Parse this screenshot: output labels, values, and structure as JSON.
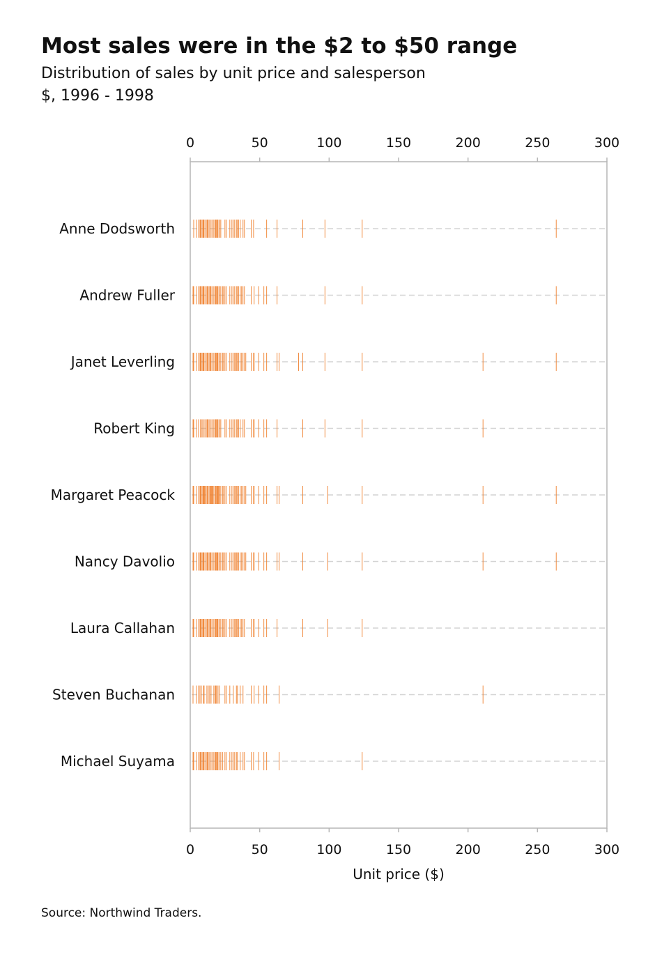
{
  "header": {
    "title": "Most sales were in the $2 to $50 range",
    "subtitle": "Distribution of sales by unit price and salesperson",
    "unit": "$, 1996 - 1998"
  },
  "footer": {
    "source": "Source: Northwind Traders."
  },
  "colors": {
    "mark": "#f07f2c",
    "frame": "#b5b5b5",
    "guide": "#d4d4d4"
  },
  "chart_data": {
    "type": "strip",
    "xlabel": "Unit price ($)",
    "xlim": [
      0,
      300
    ],
    "xticks": [
      0,
      50,
      100,
      150,
      200,
      250,
      300
    ],
    "x_axis_both_sides": true,
    "grid": false,
    "categories": [
      "Anne Dodsworth",
      "Andrew Fuller",
      "Janet Leverling",
      "Robert King",
      "Margaret Peacock",
      "Nancy Davolio",
      "Laura Callahan",
      "Steven Buchanan",
      "Michael Suyama"
    ],
    "series": [
      {
        "name": "Anne Dodsworth",
        "values": [
          2.5,
          4.5,
          6,
          7,
          7.45,
          8,
          9,
          9.2,
          9.5,
          10,
          11,
          12,
          12.5,
          13,
          14,
          15,
          16,
          17,
          18,
          18.4,
          19,
          19.5,
          20,
          21,
          21.05,
          22,
          25,
          26,
          28.5,
          30,
          31,
          32,
          33.25,
          34,
          34.8,
          36,
          38,
          39,
          43.9,
          45.6,
          55,
          62.5,
          81,
          97,
          123.79,
          263.5
        ]
      },
      {
        "name": "Andrew Fuller",
        "values": [
          2,
          2.5,
          4.5,
          6,
          7,
          7.45,
          8,
          9,
          9.2,
          9.5,
          10,
          11,
          12,
          12.5,
          13,
          14,
          14.5,
          15,
          16,
          17,
          18,
          18.4,
          19,
          19.5,
          20,
          21,
          21.05,
          22,
          23.25,
          24,
          25,
          26,
          28.5,
          30,
          31,
          32,
          33.25,
          34,
          34.8,
          36,
          37,
          38,
          39,
          43.9,
          46,
          49.3,
          53,
          55,
          62.5,
          97,
          123.79,
          263.5
        ]
      },
      {
        "name": "Janet Leverling",
        "values": [
          2,
          2.5,
          4.5,
          6,
          7,
          7.45,
          7.75,
          8,
          9,
          9.2,
          9.5,
          10,
          11,
          12,
          12.5,
          13,
          14,
          14.5,
          15,
          16,
          17,
          18,
          18.4,
          19,
          19.45,
          19.5,
          20,
          21,
          21.05,
          22,
          23.25,
          24,
          25,
          26,
          28.5,
          30,
          31,
          32,
          32.8,
          33.25,
          34,
          34.8,
          36,
          37,
          38,
          39,
          40,
          43.9,
          45.6,
          46,
          49.3,
          53,
          55,
          62.5,
          64,
          78,
          81,
          97,
          123.79,
          210.8,
          263.5
        ]
      },
      {
        "name": "Robert King",
        "values": [
          2,
          2.5,
          4.5,
          6,
          7.45,
          8,
          9,
          10,
          11,
          12,
          12.5,
          13,
          14,
          15,
          16,
          17,
          18,
          18.4,
          19,
          19.5,
          20,
          21,
          21.05,
          22,
          25,
          26,
          28.5,
          30,
          31,
          32,
          33.25,
          34,
          34.8,
          36,
          38,
          39,
          43.9,
          45.6,
          46,
          49.3,
          53,
          55,
          62.5,
          81,
          97,
          123.79,
          210.8
        ]
      },
      {
        "name": "Margaret Peacock",
        "values": [
          2,
          2.5,
          4.5,
          6,
          7,
          7.45,
          7.75,
          8,
          9,
          9.2,
          9.5,
          10,
          10.5,
          11,
          12,
          12.5,
          13,
          14,
          14.5,
          15,
          15.5,
          16,
          16.25,
          17,
          18,
          18.4,
          19,
          19.45,
          19.5,
          20,
          20.5,
          21,
          21.05,
          22,
          23.25,
          24,
          25,
          26,
          28.5,
          30,
          31,
          32,
          32.8,
          33.25,
          34,
          34.8,
          36,
          37,
          38,
          39,
          40,
          43.9,
          45.6,
          46,
          49.3,
          53,
          55,
          62.5,
          64,
          81,
          99,
          123.79,
          210.8,
          263.5
        ]
      },
      {
        "name": "Nancy Davolio",
        "values": [
          2,
          2.5,
          4.5,
          6,
          7,
          7.45,
          7.75,
          8,
          9,
          9.2,
          9.5,
          10,
          11,
          12,
          12.5,
          13,
          14,
          14.5,
          15,
          16,
          17,
          18,
          18.4,
          19,
          19.45,
          19.5,
          20,
          21,
          21.05,
          22,
          23.25,
          24,
          25,
          26,
          28.5,
          30,
          31,
          32,
          32.8,
          33.25,
          34,
          34.8,
          36,
          37,
          38,
          39,
          40,
          43.9,
          45.6,
          46,
          49.3,
          53,
          55,
          62.5,
          64,
          81,
          99,
          123.79,
          210.8,
          263.5
        ]
      },
      {
        "name": "Laura Callahan",
        "values": [
          2,
          2.5,
          4.5,
          6,
          7,
          7.45,
          7.75,
          8,
          9,
          9.2,
          9.5,
          10,
          11,
          12,
          12.5,
          13,
          14,
          14.5,
          15,
          16,
          17,
          18,
          18.4,
          19,
          19.45,
          19.5,
          20,
          21,
          21.05,
          22,
          23.25,
          24,
          25,
          26,
          28.5,
          30,
          31,
          32,
          32.8,
          33.25,
          34,
          34.8,
          36,
          37,
          38,
          39,
          43.9,
          45.6,
          46,
          49.3,
          53,
          55,
          62.5,
          81,
          99,
          123.79
        ]
      },
      {
        "name": "Steven Buchanan",
        "values": [
          2,
          4.5,
          6,
          7,
          8,
          9.5,
          10,
          12,
          13,
          14,
          15,
          17,
          18,
          18.4,
          19,
          20,
          21,
          25,
          26,
          28.5,
          31,
          33.25,
          34,
          36,
          38,
          43.9,
          46,
          49.3,
          53,
          55,
          64,
          210.8
        ]
      },
      {
        "name": "Michael Suyama",
        "values": [
          2,
          2.5,
          4.5,
          6,
          7,
          7.45,
          8,
          9,
          9.5,
          10,
          11,
          12,
          12.5,
          13,
          14,
          15,
          16,
          17,
          18,
          18.4,
          19,
          19.5,
          20,
          21,
          22,
          23.25,
          25,
          26,
          28.5,
          30,
          31,
          32,
          33.25,
          34,
          36,
          38,
          39,
          43.9,
          45.6,
          49.3,
          53,
          55,
          64,
          123.79
        ]
      }
    ]
  }
}
